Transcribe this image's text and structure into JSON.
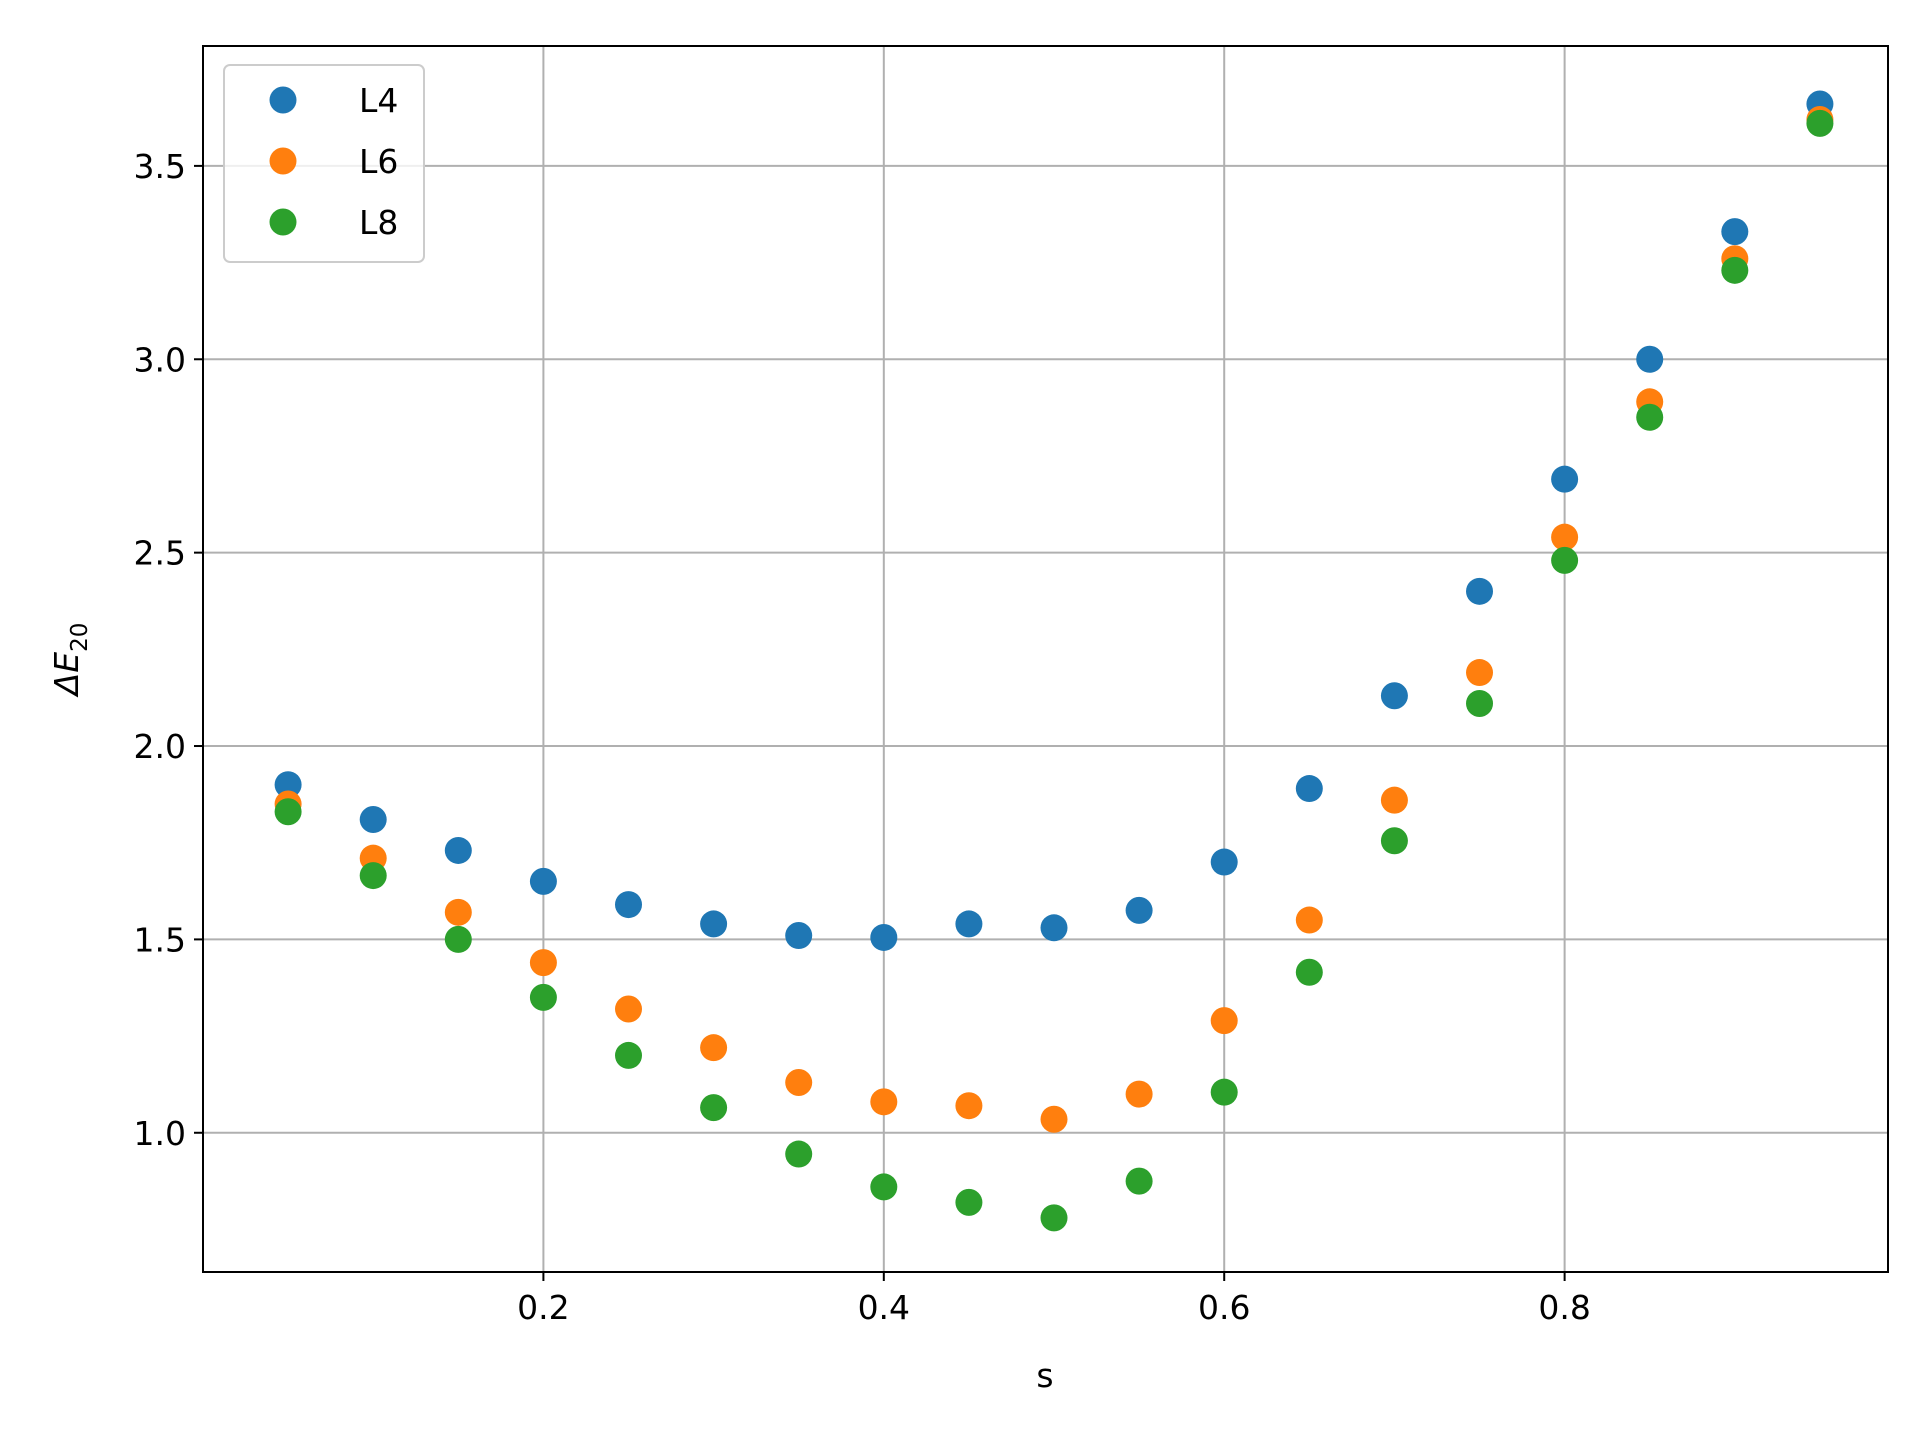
{
  "chart_data": {
    "type": "scatter",
    "title": "",
    "xlabel": "s",
    "ylabel": {
      "prefix": "ΔE",
      "subscript": "20"
    },
    "xlim": [
      0.0,
      0.99
    ],
    "ylim": [
      0.64,
      3.81
    ],
    "xticks": [
      0.2,
      0.4,
      0.6,
      0.8
    ],
    "xtick_labels": [
      "0.2",
      "0.4",
      "0.6",
      "0.8"
    ],
    "yticks": [
      1.0,
      1.5,
      2.0,
      2.5,
      3.0,
      3.5
    ],
    "ytick_labels": [
      "1.0",
      "1.5",
      "2.0",
      "2.5",
      "3.0",
      "3.5"
    ],
    "grid": true,
    "legend_position": "top-left",
    "x": [
      0.05,
      0.1,
      0.15,
      0.2,
      0.25,
      0.3,
      0.35,
      0.4,
      0.45,
      0.5,
      0.55,
      0.6,
      0.65,
      0.7,
      0.75,
      0.8,
      0.85,
      0.9,
      0.95
    ],
    "series": [
      {
        "name": "L4",
        "color": "#1f77b4",
        "values": [
          1.9,
          1.81,
          1.73,
          1.65,
          1.59,
          1.54,
          1.51,
          1.505,
          1.54,
          1.53,
          1.575,
          1.7,
          1.89,
          2.13,
          2.4,
          2.69,
          3.0,
          3.33,
          3.66
        ]
      },
      {
        "name": "L6",
        "color": "#ff7f0e",
        "values": [
          1.85,
          1.71,
          1.57,
          1.44,
          1.32,
          1.22,
          1.13,
          1.08,
          1.07,
          1.035,
          1.1,
          1.29,
          1.55,
          1.86,
          2.19,
          2.54,
          2.89,
          3.26,
          3.62
        ]
      },
      {
        "name": "L8",
        "color": "#2ca02c",
        "values": [
          1.83,
          1.665,
          1.5,
          1.35,
          1.2,
          1.065,
          0.945,
          0.86,
          0.82,
          0.78,
          0.875,
          1.105,
          1.415,
          1.755,
          2.11,
          2.48,
          2.85,
          3.23,
          3.61
        ]
      }
    ]
  }
}
